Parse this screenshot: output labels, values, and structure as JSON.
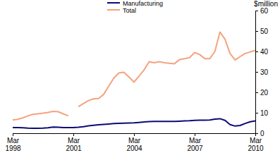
{
  "chart_data": {
    "type": "line",
    "y_label": "$million",
    "categories": [
      "Mar 1998",
      null,
      null,
      null,
      null,
      null,
      null,
      null,
      null,
      null,
      null,
      null,
      "Mar 2001",
      null,
      null,
      null,
      null,
      null,
      null,
      null,
      null,
      null,
      null,
      null,
      "Mar 2004",
      null,
      null,
      null,
      null,
      null,
      null,
      null,
      null,
      null,
      null,
      null,
      "Mar 2007",
      null,
      null,
      null,
      null,
      null,
      null,
      null,
      null,
      null,
      null,
      null,
      "Mar 2010"
    ],
    "series": [
      {
        "name": "Manufacturing",
        "color": "#0a0a78",
        "values": [
          2.8,
          2.8,
          2.7,
          2.5,
          2.4,
          2.4,
          2.5,
          2.7,
          3.0,
          2.9,
          2.8,
          2.8,
          2.8,
          2.9,
          3.2,
          3.6,
          3.9,
          4.1,
          4.3,
          4.5,
          4.7,
          4.8,
          4.9,
          5.0,
          5.1,
          5.3,
          5.5,
          5.7,
          5.8,
          5.8,
          5.8,
          5.8,
          5.8,
          5.9,
          6.0,
          6.1,
          6.3,
          6.4,
          6.4,
          6.5,
          6.9,
          7.1,
          6.3,
          4.2,
          3.5,
          3.8,
          4.8,
          5.6,
          6.0
        ]
      },
      {
        "name": "Total",
        "color": "#f4a37f",
        "values": [
          6.5,
          6.8,
          7.5,
          8.5,
          9.2,
          9.5,
          9.8,
          10.2,
          10.7,
          10.5,
          9.5,
          8.5,
          null,
          13.0,
          14.5,
          16.0,
          16.8,
          17.0,
          19.0,
          23.0,
          27.0,
          29.5,
          29.8,
          27.5,
          25.0,
          28.0,
          31.0,
          35.0,
          34.5,
          35.0,
          34.5,
          34.2,
          34.0,
          36.0,
          36.5,
          37.0,
          39.5,
          38.5,
          36.5,
          36.5,
          40.0,
          49.5,
          46.0,
          39.0,
          35.8,
          37.5,
          39.0,
          39.8,
          40.5
        ]
      }
    ],
    "ylim": [
      0,
      60
    ],
    "yticks": [
      0,
      10,
      20,
      30,
      40,
      50,
      60
    ],
    "legend": "top",
    "grid": false
  }
}
